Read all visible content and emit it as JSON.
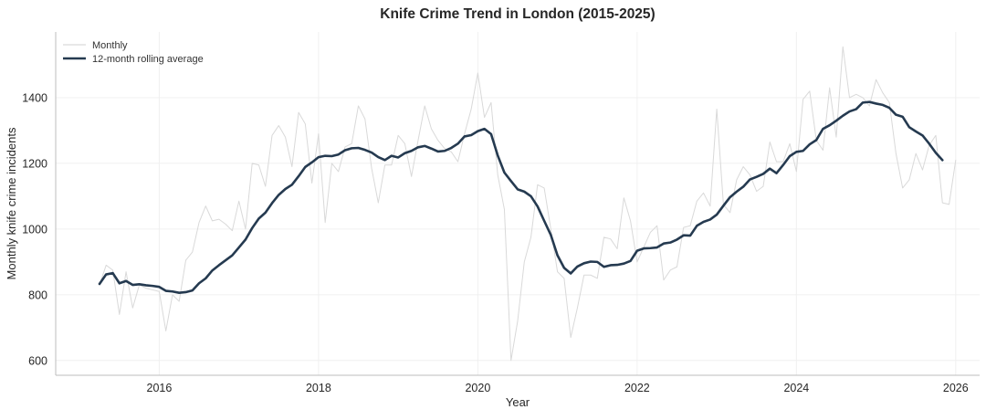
{
  "chart_data": {
    "type": "line",
    "title": "Knife Crime Trend in London (2015-2025)",
    "xlabel": "Year",
    "ylabel": "Monthly knife crime incidents",
    "xlim": [
      2014.7,
      2026.3
    ],
    "ylim": [
      555,
      1600
    ],
    "x_ticks": [
      "2016",
      "2018",
      "2020",
      "2022",
      "2024",
      "2026"
    ],
    "y_ticks": [
      "600",
      "800",
      "1000",
      "1200",
      "1400"
    ],
    "grid": true,
    "legend_position": "top-left",
    "start": {
      "year": 2015,
      "month": 4
    },
    "series": [
      {
        "name": "Monthly",
        "color": "#d9d9d9",
        "values": [
          830,
          890,
          875,
          740,
          870,
          760,
          830,
          820,
          815,
          810,
          690,
          800,
          780,
          905,
          930,
          1020,
          1070,
          1025,
          1030,
          1015,
          995,
          1085,
          1000,
          1200,
          1195,
          1130,
          1285,
          1315,
          1280,
          1190,
          1355,
          1320,
          1140,
          1290,
          1020,
          1200,
          1175,
          1250,
          1260,
          1375,
          1335,
          1185,
          1080,
          1195,
          1195,
          1285,
          1260,
          1160,
          1270,
          1375,
          1305,
          1270,
          1245,
          1235,
          1205,
          1290,
          1365,
          1475,
          1340,
          1385,
          1165,
          1060,
          600,
          720,
          900,
          975,
          1135,
          1125,
          1000,
          870,
          850,
          670,
          760,
          860,
          860,
          850,
          975,
          970,
          940,
          1095,
          1025,
          900,
          945,
          990,
          1010,
          845,
          875,
          885,
          1005,
          1010,
          1085,
          1110,
          1070,
          1365,
          1075,
          1050,
          1150,
          1190,
          1165,
          1115,
          1130,
          1265,
          1205,
          1205,
          1260,
          1175,
          1395,
          1420,
          1270,
          1240,
          1430,
          1280,
          1555,
          1400,
          1410,
          1400,
          1375,
          1455,
          1415,
          1385,
          1230,
          1125,
          1150,
          1230,
          1180,
          1255,
          1285,
          1080,
          1075,
          1210
        ]
      },
      {
        "name": "12-month rolling average",
        "color": "#253a50",
        "values": [
          833,
          862,
          866,
          835,
          842,
          830,
          832,
          829,
          827,
          824,
          812,
          810,
          806,
          808,
          813,
          835,
          850,
          874,
          890,
          905,
          920,
          944,
          968,
          1003,
          1032,
          1050,
          1079,
          1104,
          1122,
          1135,
          1161,
          1189,
          1203,
          1219,
          1223,
          1222,
          1227,
          1240,
          1246,
          1247,
          1241,
          1233,
          1219,
          1210,
          1223,
          1218,
          1231,
          1238,
          1249,
          1253,
          1245,
          1236,
          1238,
          1247,
          1260,
          1282,
          1286,
          1298,
          1305,
          1289,
          1224,
          1172,
          1146,
          1121,
          1114,
          1100,
          1069,
          1025,
          982,
          920,
          882,
          865,
          886,
          896,
          901,
          900,
          885,
          890,
          891,
          895,
          903,
          934,
          941,
          942,
          944,
          956,
          959,
          968,
          981,
          980,
          1010,
          1022,
          1029,
          1044,
          1071,
          1097,
          1114,
          1129,
          1151,
          1159,
          1168,
          1184,
          1170,
          1195,
          1222,
          1235,
          1238,
          1258,
          1271,
          1305,
          1316,
          1330,
          1345,
          1358,
          1365,
          1385,
          1387,
          1382,
          1378,
          1369,
          1348,
          1342,
          1310,
          1297,
          1285,
          1260,
          1232,
          1210
        ]
      }
    ]
  }
}
